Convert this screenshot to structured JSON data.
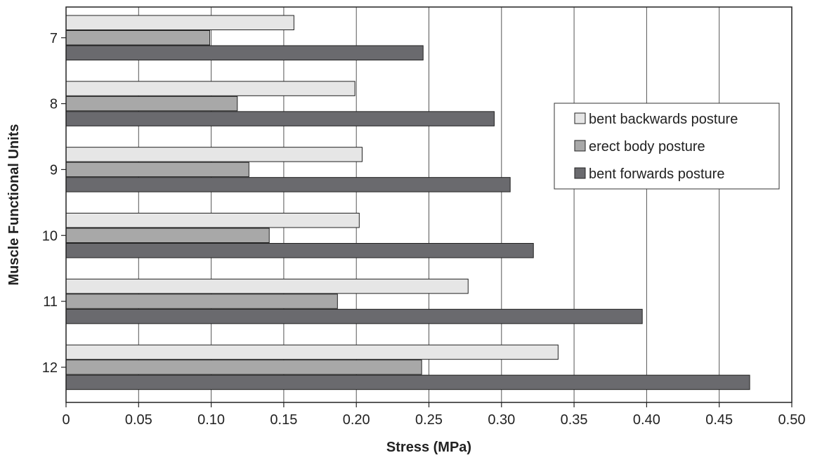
{
  "chart_data": {
    "type": "bar",
    "orientation": "horizontal",
    "xlabel": "Stress (MPa)",
    "ylabel": "Muscle Functional Units",
    "xlim": [
      0,
      0.5
    ],
    "xticks": [
      "0",
      "0.05",
      "0.10",
      "0.15",
      "0.20",
      "0.25",
      "0.30",
      "0.35",
      "0.40",
      "0.45",
      "0.50"
    ],
    "categories": [
      "7",
      "8",
      "9",
      "10",
      "11",
      "12"
    ],
    "series": [
      {
        "name": "bent backwards posture",
        "color": "#e6e6e6",
        "values": [
          0.157,
          0.199,
          0.204,
          0.202,
          0.277,
          0.339
        ]
      },
      {
        "name": "erect body posture",
        "color": "#a8a8a8",
        "values": [
          0.099,
          0.118,
          0.126,
          0.14,
          0.187,
          0.245
        ]
      },
      {
        "name": "bent forwards posture",
        "color": "#6a6a6e",
        "values": [
          0.246,
          0.295,
          0.306,
          0.322,
          0.397,
          0.471
        ]
      }
    ],
    "grid": "vertical",
    "legend_position": "right"
  }
}
